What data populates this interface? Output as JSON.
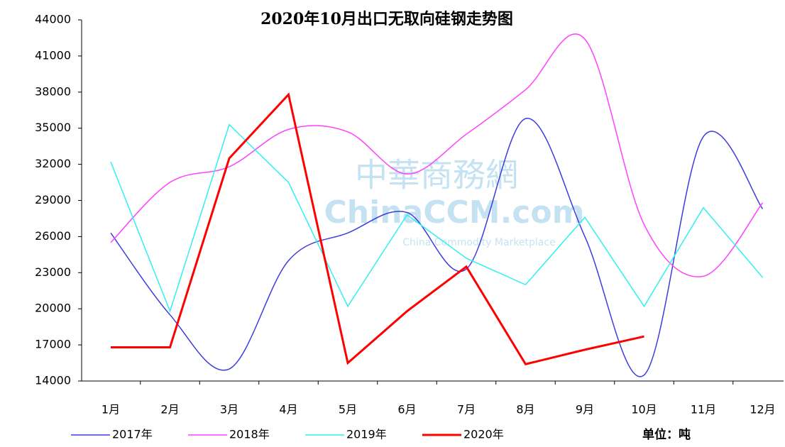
{
  "chart_data": {
    "type": "line",
    "title": "2020年10月出口无取向硅钢走势图",
    "unit_label": "单位：吨",
    "watermark": [
      "中華商務網",
      "ChinaCCM.com",
      "China Commodity Marketplace"
    ],
    "categories": [
      "1月",
      "2月",
      "3月",
      "4月",
      "5月",
      "6月",
      "7月",
      "8月",
      "9月",
      "10月",
      "11月",
      "12月"
    ],
    "ylim": [
      14000,
      44000
    ],
    "yticks": [
      14000,
      17000,
      20000,
      23000,
      26000,
      29000,
      32000,
      35000,
      38000,
      41000,
      44000
    ],
    "grid": false,
    "legend": "bottom",
    "series": [
      {
        "name": "2017年",
        "color": "#3c3ce0",
        "smooth": true,
        "values": [
          26300,
          19500,
          15000,
          24000,
          26300,
          28000,
          23300,
          35800,
          26000,
          14500,
          34300,
          28300
        ]
      },
      {
        "name": "2018年",
        "color": "#ff40ff",
        "smooth": true,
        "values": [
          25500,
          30500,
          31800,
          34900,
          34700,
          31200,
          34500,
          38200,
          42400,
          27000,
          22700,
          28800
        ]
      },
      {
        "name": "2019年",
        "color": "#30f0f0",
        "smooth": false,
        "values": [
          32200,
          19800,
          35300,
          30500,
          20200,
          27800,
          24200,
          22000,
          27600,
          20200,
          28400,
          22600
        ]
      },
      {
        "name": "2020年",
        "color": "#ff0000",
        "smooth": false,
        "width": 3,
        "values": [
          16800,
          16800,
          32500,
          37800,
          15500,
          19800,
          23500,
          15400,
          16600,
          17700,
          null,
          null
        ]
      }
    ]
  }
}
